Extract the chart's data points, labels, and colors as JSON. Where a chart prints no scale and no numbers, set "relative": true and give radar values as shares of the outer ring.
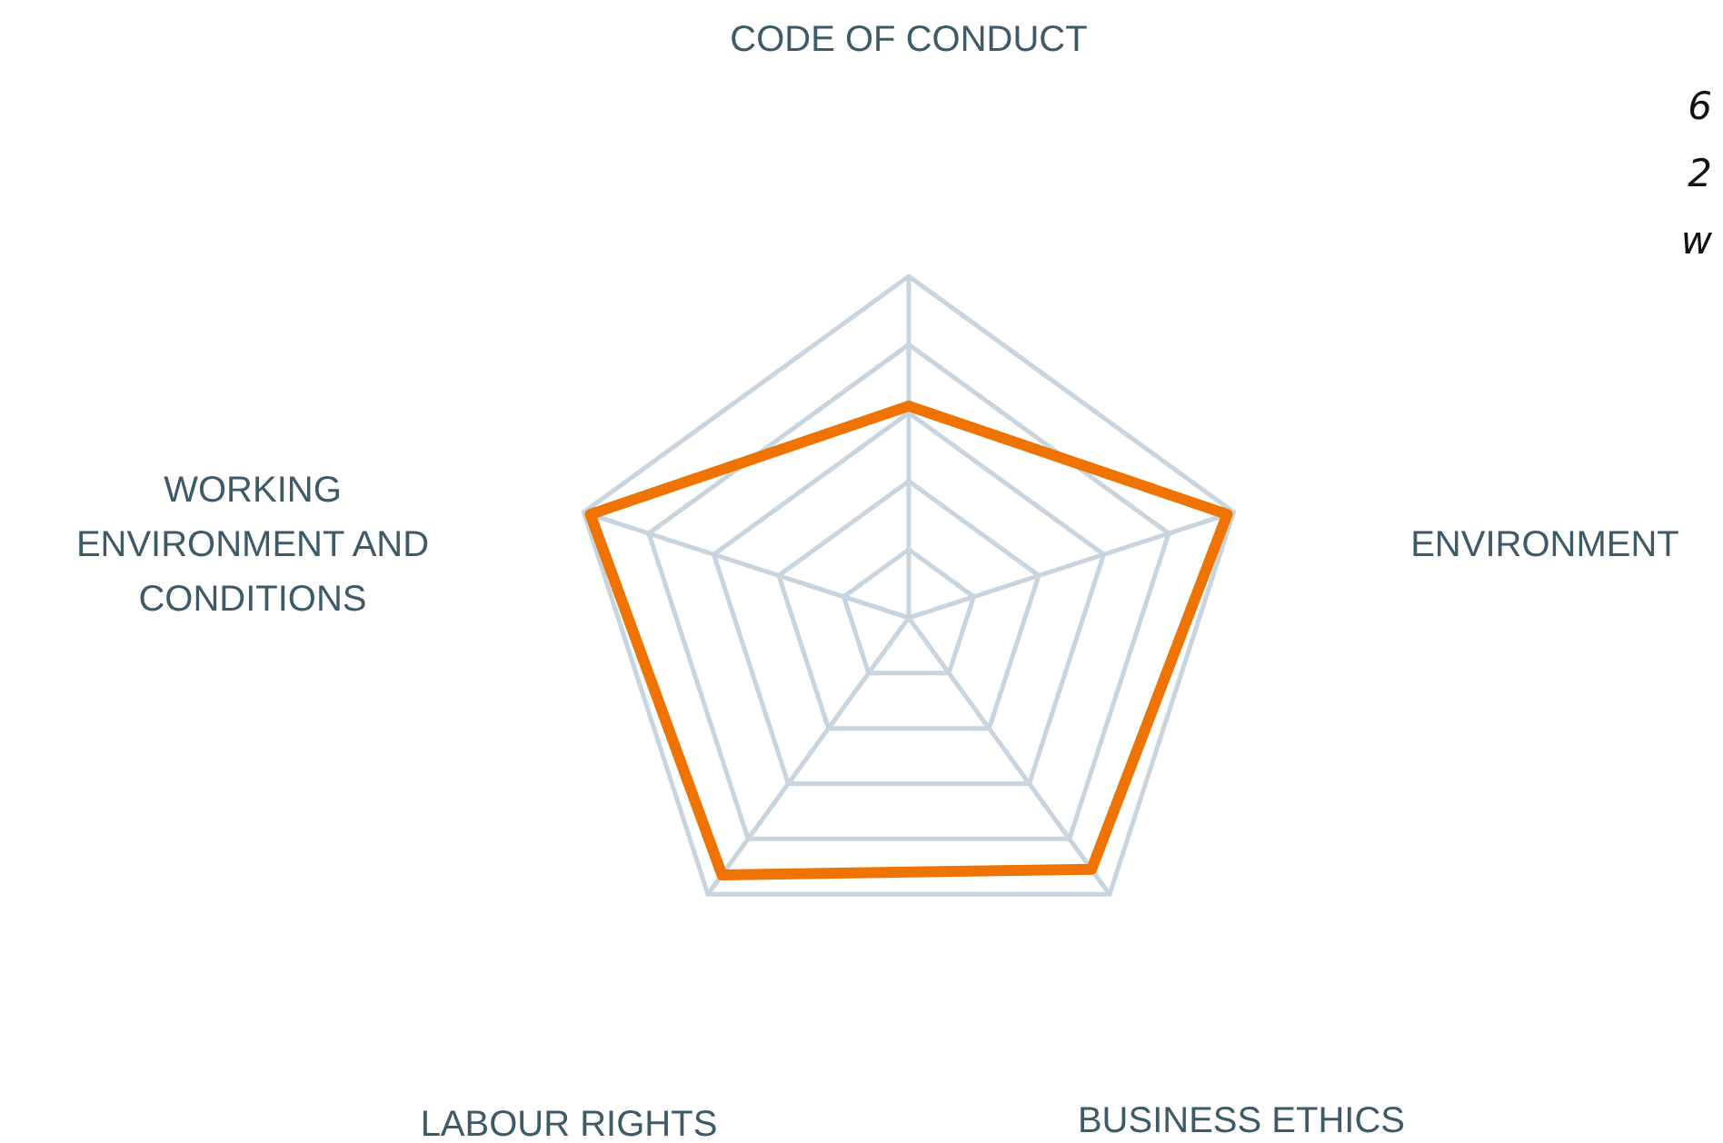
{
  "chart_data": {
    "type": "radar",
    "relative": true,
    "categories": [
      "CODE OF CONDUCT",
      "ENVIRONMENT",
      "BUSINESS ETHICS",
      "LABOUR RIGHTS",
      "WORKING\nENVIRONMENT AND\nCONDITIONS"
    ],
    "series": [
      {
        "color": "#ef7300",
        "values": [
          0.62,
          0.98,
          0.91,
          0.93,
          0.98
        ]
      }
    ],
    "grid": true,
    "marker": "none",
    "line_style": "solid",
    "annotations": [
      "6",
      "2",
      "w"
    ]
  }
}
